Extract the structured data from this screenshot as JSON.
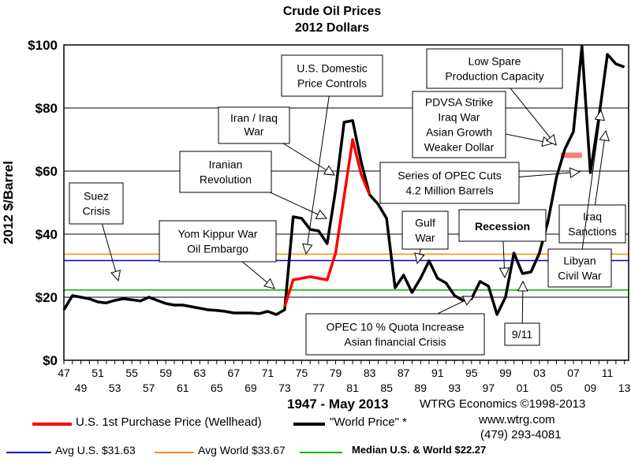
{
  "chart_data": {
    "type": "line",
    "title": "Crude Oil Prices",
    "subtitle": "2012 Dollars",
    "ylabel": "2012 $/Barrel",
    "xlabel": "1947 - May 2013",
    "ylim": [
      0,
      100
    ],
    "xlim": [
      1947,
      2013.5
    ],
    "y_ticks": [
      "$0",
      "$20",
      "$40",
      "$60",
      "$80",
      "$100"
    ],
    "y_tick_values": [
      0,
      20,
      40,
      60,
      80,
      100
    ],
    "x_ticks_top_row": [
      "47",
      "51",
      "55",
      "59",
      "63",
      "67",
      "71",
      "75",
      "79",
      "83",
      "87",
      "91",
      "95",
      "99",
      "03",
      "07",
      "11"
    ],
    "x_ticks_top_values": [
      1947,
      1951,
      1955,
      1959,
      1963,
      1967,
      1971,
      1975,
      1979,
      1983,
      1987,
      1991,
      1995,
      1999,
      2003,
      2007,
      2011
    ],
    "x_ticks_bottom_row": [
      "49",
      "53",
      "57",
      "61",
      "65",
      "69",
      "73",
      "77",
      "81",
      "85",
      "89",
      "93",
      "97",
      "01",
      "05",
      "09",
      "13"
    ],
    "x_ticks_bottom_values": [
      1949,
      1953,
      1957,
      1961,
      1965,
      1969,
      1973,
      1977,
      1981,
      1985,
      1989,
      1993,
      1997,
      2001,
      2005,
      2009,
      2013
    ],
    "grid": "horizontal",
    "series": [
      {
        "name": "\"World Price\" *",
        "color": "#000000",
        "points": [
          [
            1947,
            16
          ],
          [
            1948,
            20.5
          ],
          [
            1949,
            20
          ],
          [
            1950,
            19.5
          ],
          [
            1951,
            18.5
          ],
          [
            1952,
            18.2
          ],
          [
            1953,
            19
          ],
          [
            1954,
            19.5
          ],
          [
            1955,
            19.2
          ],
          [
            1956,
            18.8
          ],
          [
            1957,
            20
          ],
          [
            1958,
            19
          ],
          [
            1959,
            18
          ],
          [
            1960,
            17.5
          ],
          [
            1961,
            17.5
          ],
          [
            1962,
            17
          ],
          [
            1963,
            16.5
          ],
          [
            1964,
            16
          ],
          [
            1965,
            15.8
          ],
          [
            1966,
            15.5
          ],
          [
            1967,
            15
          ],
          [
            1968,
            15
          ],
          [
            1969,
            15
          ],
          [
            1970,
            14.8
          ],
          [
            1971,
            15.5
          ],
          [
            1972,
            14.5
          ],
          [
            1973,
            16
          ],
          [
            1974,
            45.5
          ],
          [
            1975,
            45
          ],
          [
            1976,
            41.5
          ],
          [
            1977,
            41
          ],
          [
            1978,
            37
          ],
          [
            1979,
            54
          ],
          [
            1980,
            75.5
          ],
          [
            1981,
            76
          ],
          [
            1982,
            63
          ],
          [
            1983,
            52.5
          ],
          [
            1984,
            49.5
          ],
          [
            1985,
            45
          ],
          [
            1986,
            23
          ],
          [
            1987,
            27
          ],
          [
            1988,
            21.5
          ],
          [
            1989,
            26
          ],
          [
            1990,
            31.5
          ],
          [
            1991,
            26
          ],
          [
            1992,
            24.5
          ],
          [
            1993,
            20.5
          ],
          [
            1994,
            19
          ],
          [
            1995,
            19.5
          ],
          [
            1996,
            25
          ],
          [
            1997,
            23.5
          ],
          [
            1998,
            14.5
          ],
          [
            1999,
            20
          ],
          [
            2000,
            34
          ],
          [
            2001,
            27.5
          ],
          [
            2002,
            28
          ],
          [
            2003,
            34
          ],
          [
            2004,
            44
          ],
          [
            2005,
            58
          ],
          [
            2006,
            67
          ],
          [
            2007,
            72.5
          ],
          [
            2008,
            99.5
          ],
          [
            2009,
            59.5
          ],
          [
            2010,
            77
          ],
          [
            2011,
            97
          ],
          [
            2012,
            94
          ],
          [
            2013,
            93
          ]
        ]
      },
      {
        "name": "U.S. 1st Purchase Price (Wellhead)",
        "color": "#ff0000",
        "points": [
          [
            1973,
            17
          ],
          [
            1974,
            25.5
          ],
          [
            1975,
            26
          ],
          [
            1976,
            26.5
          ],
          [
            1977,
            26
          ],
          [
            1978,
            25.5
          ],
          [
            1979,
            34
          ],
          [
            1980,
            52
          ],
          [
            1981,
            70
          ],
          [
            1982,
            59
          ],
          [
            1983,
            52.5
          ]
        ]
      }
    ],
    "reference_lines": [
      {
        "name": "Avg U.S. $31.63",
        "value": 31.63,
        "color": "#0000cc"
      },
      {
        "name": "Avg World $33.67",
        "value": 33.67,
        "color": "#ff8c00"
      },
      {
        "name": "Median U.S. & World  $22.27",
        "value": 22.27,
        "color": "#00b000"
      }
    ],
    "highlight_bar": {
      "x_start": 2005.5,
      "x_end": 2008,
      "y": 65,
      "color": "#f08080"
    },
    "annotations": [
      {
        "lines": [
          "Suez",
          "Crisis"
        ],
        "target": [
          1955,
          21
        ]
      },
      {
        "lines": [
          "Yom Kippur War",
          "Oil Embargo"
        ],
        "target": [
          1973,
          21
        ]
      },
      {
        "lines": [
          "Iranian",
          "Revolution"
        ],
        "target": [
          1979,
          44
        ]
      },
      {
        "lines": [
          "Iran / Iraq",
          "War"
        ],
        "target": [
          1980,
          58
        ]
      },
      {
        "lines": [
          "U.S. Domestic",
          "Price Controls"
        ],
        "target": [
          1974,
          30
        ]
      },
      {
        "lines": [
          "PDVSA Strike",
          "Iraq War",
          "Asian Growth",
          "Weaker Dollar"
        ],
        "target": [
          2004,
          53
        ]
      },
      {
        "lines": [
          "Low Spare",
          "Production Capacity"
        ],
        "target": [
          2006,
          72
        ]
      },
      {
        "lines": [
          "Series of OPEC Cuts",
          "4.2 Million Barrels"
        ],
        "target": [
          2009,
          60
        ]
      },
      {
        "lines": [
          "Gulf",
          "War"
        ],
        "target": [
          1990,
          31
        ]
      },
      {
        "lines": [
          "Recession"
        ],
        "target": [
          2000,
          29
        ]
      },
      {
        "lines": [
          "Iraq",
          "Sanctions"
        ],
        "target": [
          2011,
          72
        ]
      },
      {
        "lines": [
          "Libyan",
          "Civil War"
        ],
        "target": [
          2011,
          79
        ]
      },
      {
        "lines": [
          "OPEC 10 % Quota Increase",
          "Asian financial Crisis"
        ],
        "target": [
          1998,
          14
        ]
      },
      {
        "lines": [
          "9/11"
        ],
        "target": [
          2001,
          26
        ]
      }
    ]
  },
  "footer": {
    "period": "1947 - May 2013",
    "source": "WTRG Economics  ©1998-2013",
    "website": "www.wtrg.com",
    "phone": "(479) 293-4081",
    "legend_us_label": "U.S. 1st Purchase Price (Wellhead)",
    "legend_world_label": "\"World Price\" *",
    "avg_us_label": "Avg U.S. $31.63",
    "avg_world_label": "Avg World $33.67",
    "median_label": "Median U.S. & World  $22.27"
  }
}
